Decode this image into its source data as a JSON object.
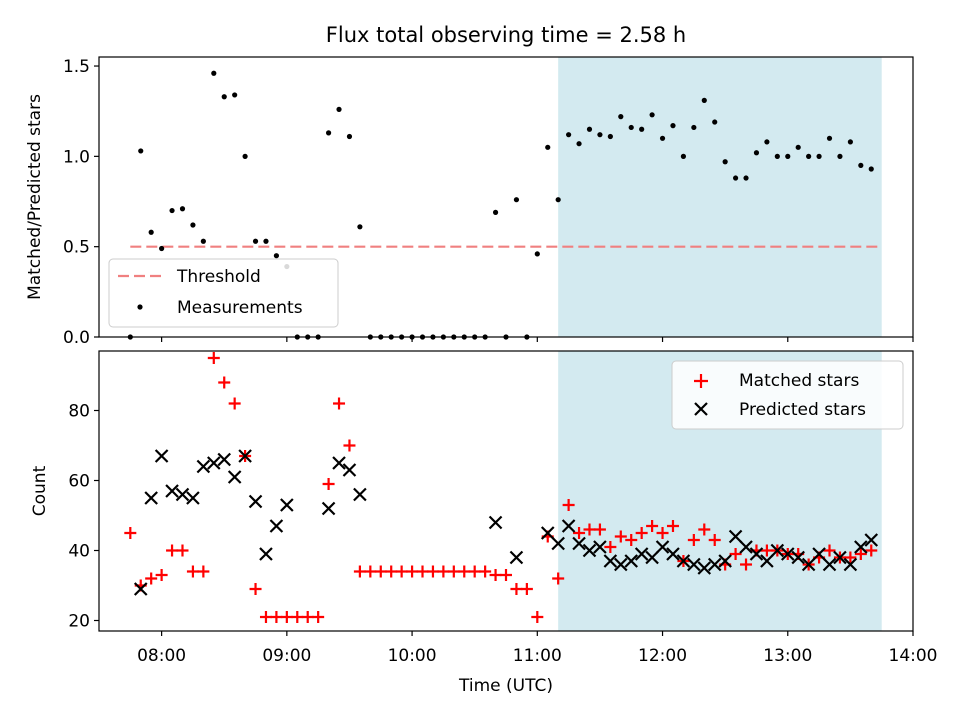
{
  "title": "Flux total observing time = 2.58 h",
  "chart_data": [
    {
      "type": "scatter",
      "panel": "top",
      "ylabel": "Matched/Predicted stars",
      "ylim": [
        0,
        1.55
      ],
      "yticks": [
        0,
        0.5,
        1.0,
        1.5
      ],
      "ytick_labels": [
        "0.0",
        "0.5",
        "1.0",
        "1.5"
      ],
      "xlim": [
        "07:30",
        "14:00"
      ],
      "threshold": {
        "name": "Threshold",
        "value": 0.5,
        "x_start": "07:45",
        "x_end": "13:45",
        "color": "#f08080"
      },
      "shaded_interval": {
        "start": "11:10",
        "end": "13:45",
        "color": "#d3eaf0"
      },
      "legend": {
        "placement": "lower-left",
        "entries": [
          "Threshold",
          "Measurements"
        ]
      },
      "series": [
        {
          "name": "Measurements",
          "marker": "dot",
          "color": "#000000",
          "points": [
            [
              "07:45",
              0
            ],
            [
              "07:50",
              1.03
            ],
            [
              "07:55",
              0.58
            ],
            [
              "08:00",
              0.49
            ],
            [
              "08:05",
              0.7
            ],
            [
              "08:10",
              0.71
            ],
            [
              "08:15",
              0.62
            ],
            [
              "08:20",
              0.53
            ],
            [
              "08:25",
              1.46
            ],
            [
              "08:30",
              1.33
            ],
            [
              "08:35",
              1.34
            ],
            [
              "08:40",
              1.0
            ],
            [
              "08:45",
              0.53
            ],
            [
              "08:50",
              0.53
            ],
            [
              "08:55",
              0.45
            ],
            [
              "09:00",
              0.39
            ],
            [
              "09:05",
              0
            ],
            [
              "09:10",
              0
            ],
            [
              "09:15",
              0
            ],
            [
              "09:20",
              1.13
            ],
            [
              "09:25",
              1.26
            ],
            [
              "09:30",
              1.11
            ],
            [
              "09:35",
              0.61
            ],
            [
              "09:40",
              0
            ],
            [
              "09:45",
              0
            ],
            [
              "09:50",
              0
            ],
            [
              "09:55",
              0
            ],
            [
              "10:00",
              0
            ],
            [
              "10:05",
              0
            ],
            [
              "10:10",
              0
            ],
            [
              "10:15",
              0
            ],
            [
              "10:20",
              0
            ],
            [
              "10:25",
              0
            ],
            [
              "10:30",
              0
            ],
            [
              "10:35",
              0
            ],
            [
              "10:40",
              0.69
            ],
            [
              "10:45",
              0
            ],
            [
              "10:50",
              0.76
            ],
            [
              "10:55",
              0
            ],
            [
              "11:00",
              0.46
            ],
            [
              "11:05",
              1.05
            ],
            [
              "11:10",
              0.76
            ],
            [
              "11:15",
              1.12
            ],
            [
              "11:20",
              1.07
            ],
            [
              "11:25",
              1.15
            ],
            [
              "11:30",
              1.12
            ],
            [
              "11:35",
              1.11
            ],
            [
              "11:40",
              1.22
            ],
            [
              "11:45",
              1.16
            ],
            [
              "11:50",
              1.15
            ],
            [
              "11:55",
              1.23
            ],
            [
              "12:00",
              1.1
            ],
            [
              "12:05",
              1.17
            ],
            [
              "12:10",
              1.0
            ],
            [
              "12:15",
              1.16
            ],
            [
              "12:20",
              1.31
            ],
            [
              "12:25",
              1.19
            ],
            [
              "12:30",
              0.97
            ],
            [
              "12:35",
              0.88
            ],
            [
              "12:40",
              0.88
            ],
            [
              "12:45",
              1.02
            ],
            [
              "12:50",
              1.08
            ],
            [
              "12:55",
              1.0
            ],
            [
              "13:00",
              1.0
            ],
            [
              "13:05",
              1.05
            ],
            [
              "13:10",
              1.0
            ],
            [
              "13:15",
              1.0
            ],
            [
              "13:20",
              1.1
            ],
            [
              "13:25",
              1.0
            ],
            [
              "13:30",
              1.08
            ],
            [
              "13:35",
              0.95
            ],
            [
              "13:40",
              0.93
            ]
          ]
        }
      ]
    },
    {
      "type": "scatter",
      "panel": "bottom",
      "ylabel": "Count",
      "xlabel": "Time (UTC)",
      "ylim": [
        17,
        97
      ],
      "yticks": [
        20,
        40,
        60,
        80
      ],
      "xlim": [
        "07:30",
        "14:00"
      ],
      "xticks": [
        "08:00",
        "09:00",
        "10:00",
        "11:00",
        "12:00",
        "13:00",
        "14:00"
      ],
      "shaded_interval": {
        "start": "11:10",
        "end": "13:45",
        "color": "#d3eaf0"
      },
      "legend": {
        "placement": "upper-right",
        "entries": [
          "Matched stars",
          "Predicted stars"
        ]
      },
      "series": [
        {
          "name": "Matched stars",
          "marker": "plus",
          "color": "#ff0000",
          "points": [
            [
              "07:45",
              45
            ],
            [
              "07:50",
              30
            ],
            [
              "07:55",
              32
            ],
            [
              "08:00",
              33
            ],
            [
              "08:05",
              40
            ],
            [
              "08:10",
              40
            ],
            [
              "08:15",
              34
            ],
            [
              "08:20",
              34
            ],
            [
              "08:25",
              95
            ],
            [
              "08:30",
              88
            ],
            [
              "08:35",
              82
            ],
            [
              "08:40",
              67
            ],
            [
              "08:45",
              29
            ],
            [
              "08:50",
              21
            ],
            [
              "08:55",
              21
            ],
            [
              "09:00",
              21
            ],
            [
              "09:05",
              21
            ],
            [
              "09:10",
              21
            ],
            [
              "09:15",
              21
            ],
            [
              "09:20",
              59
            ],
            [
              "09:25",
              82
            ],
            [
              "09:30",
              70
            ],
            [
              "09:35",
              34
            ],
            [
              "09:40",
              34
            ],
            [
              "09:45",
              34
            ],
            [
              "09:50",
              34
            ],
            [
              "09:55",
              34
            ],
            [
              "10:00",
              34
            ],
            [
              "10:05",
              34
            ],
            [
              "10:10",
              34
            ],
            [
              "10:15",
              34
            ],
            [
              "10:20",
              34
            ],
            [
              "10:25",
              34
            ],
            [
              "10:30",
              34
            ],
            [
              "10:35",
              34
            ],
            [
              "10:40",
              33
            ],
            [
              "10:45",
              33
            ],
            [
              "10:50",
              29
            ],
            [
              "10:55",
              29
            ],
            [
              "11:00",
              21
            ],
            [
              "11:05",
              44
            ],
            [
              "11:10",
              32
            ],
            [
              "11:15",
              53
            ],
            [
              "11:20",
              45
            ],
            [
              "11:25",
              46
            ],
            [
              "11:30",
              46
            ],
            [
              "11:35",
              41
            ],
            [
              "11:40",
              44
            ],
            [
              "11:45",
              43
            ],
            [
              "11:50",
              45
            ],
            [
              "11:55",
              47
            ],
            [
              "12:00",
              45
            ],
            [
              "12:05",
              47
            ],
            [
              "12:10",
              37
            ],
            [
              "12:15",
              43
            ],
            [
              "12:20",
              46
            ],
            [
              "12:25",
              43
            ],
            [
              "12:30",
              36
            ],
            [
              "12:35",
              39
            ],
            [
              "12:40",
              36
            ],
            [
              "12:45",
              40
            ],
            [
              "12:50",
              40
            ],
            [
              "12:55",
              40
            ],
            [
              "13:00",
              39
            ],
            [
              "13:05",
              39
            ],
            [
              "13:10",
              36
            ],
            [
              "13:15",
              38
            ],
            [
              "13:20",
              40
            ],
            [
              "13:25",
              38
            ],
            [
              "13:30",
              38
            ],
            [
              "13:35",
              39
            ],
            [
              "13:40",
              40
            ]
          ]
        },
        {
          "name": "Predicted stars",
          "marker": "x",
          "color": "#000000",
          "points": [
            [
              "07:50",
              29
            ],
            [
              "07:55",
              55
            ],
            [
              "08:00",
              67
            ],
            [
              "08:05",
              57
            ],
            [
              "08:10",
              56
            ],
            [
              "08:15",
              55
            ],
            [
              "08:20",
              64
            ],
            [
              "08:25",
              65
            ],
            [
              "08:30",
              66
            ],
            [
              "08:35",
              61
            ],
            [
              "08:40",
              67
            ],
            [
              "08:45",
              54
            ],
            [
              "08:50",
              39
            ],
            [
              "08:55",
              47
            ],
            [
              "09:00",
              53
            ],
            [
              "09:20",
              52
            ],
            [
              "09:25",
              65
            ],
            [
              "09:30",
              63
            ],
            [
              "09:35",
              56
            ],
            [
              "10:40",
              48
            ],
            [
              "10:50",
              38
            ],
            [
              "11:05",
              45
            ],
            [
              "11:10",
              42
            ],
            [
              "11:15",
              47
            ],
            [
              "11:20",
              42
            ],
            [
              "11:25",
              40
            ],
            [
              "11:30",
              41
            ],
            [
              "11:35",
              37
            ],
            [
              "11:40",
              36
            ],
            [
              "11:45",
              37
            ],
            [
              "11:50",
              39
            ],
            [
              "11:55",
              38
            ],
            [
              "12:00",
              41
            ],
            [
              "12:05",
              39
            ],
            [
              "12:10",
              37
            ],
            [
              "12:15",
              36
            ],
            [
              "12:20",
              35
            ],
            [
              "12:25",
              36
            ],
            [
              "12:30",
              37
            ],
            [
              "12:35",
              44
            ],
            [
              "12:40",
              41
            ],
            [
              "12:45",
              39
            ],
            [
              "12:50",
              37
            ],
            [
              "12:55",
              40
            ],
            [
              "13:00",
              39
            ],
            [
              "13:05",
              38
            ],
            [
              "13:10",
              36
            ],
            [
              "13:15",
              39
            ],
            [
              "13:20",
              36
            ],
            [
              "13:25",
              38
            ],
            [
              "13:30",
              36
            ],
            [
              "13:35",
              41
            ],
            [
              "13:40",
              43
            ]
          ]
        }
      ]
    }
  ]
}
